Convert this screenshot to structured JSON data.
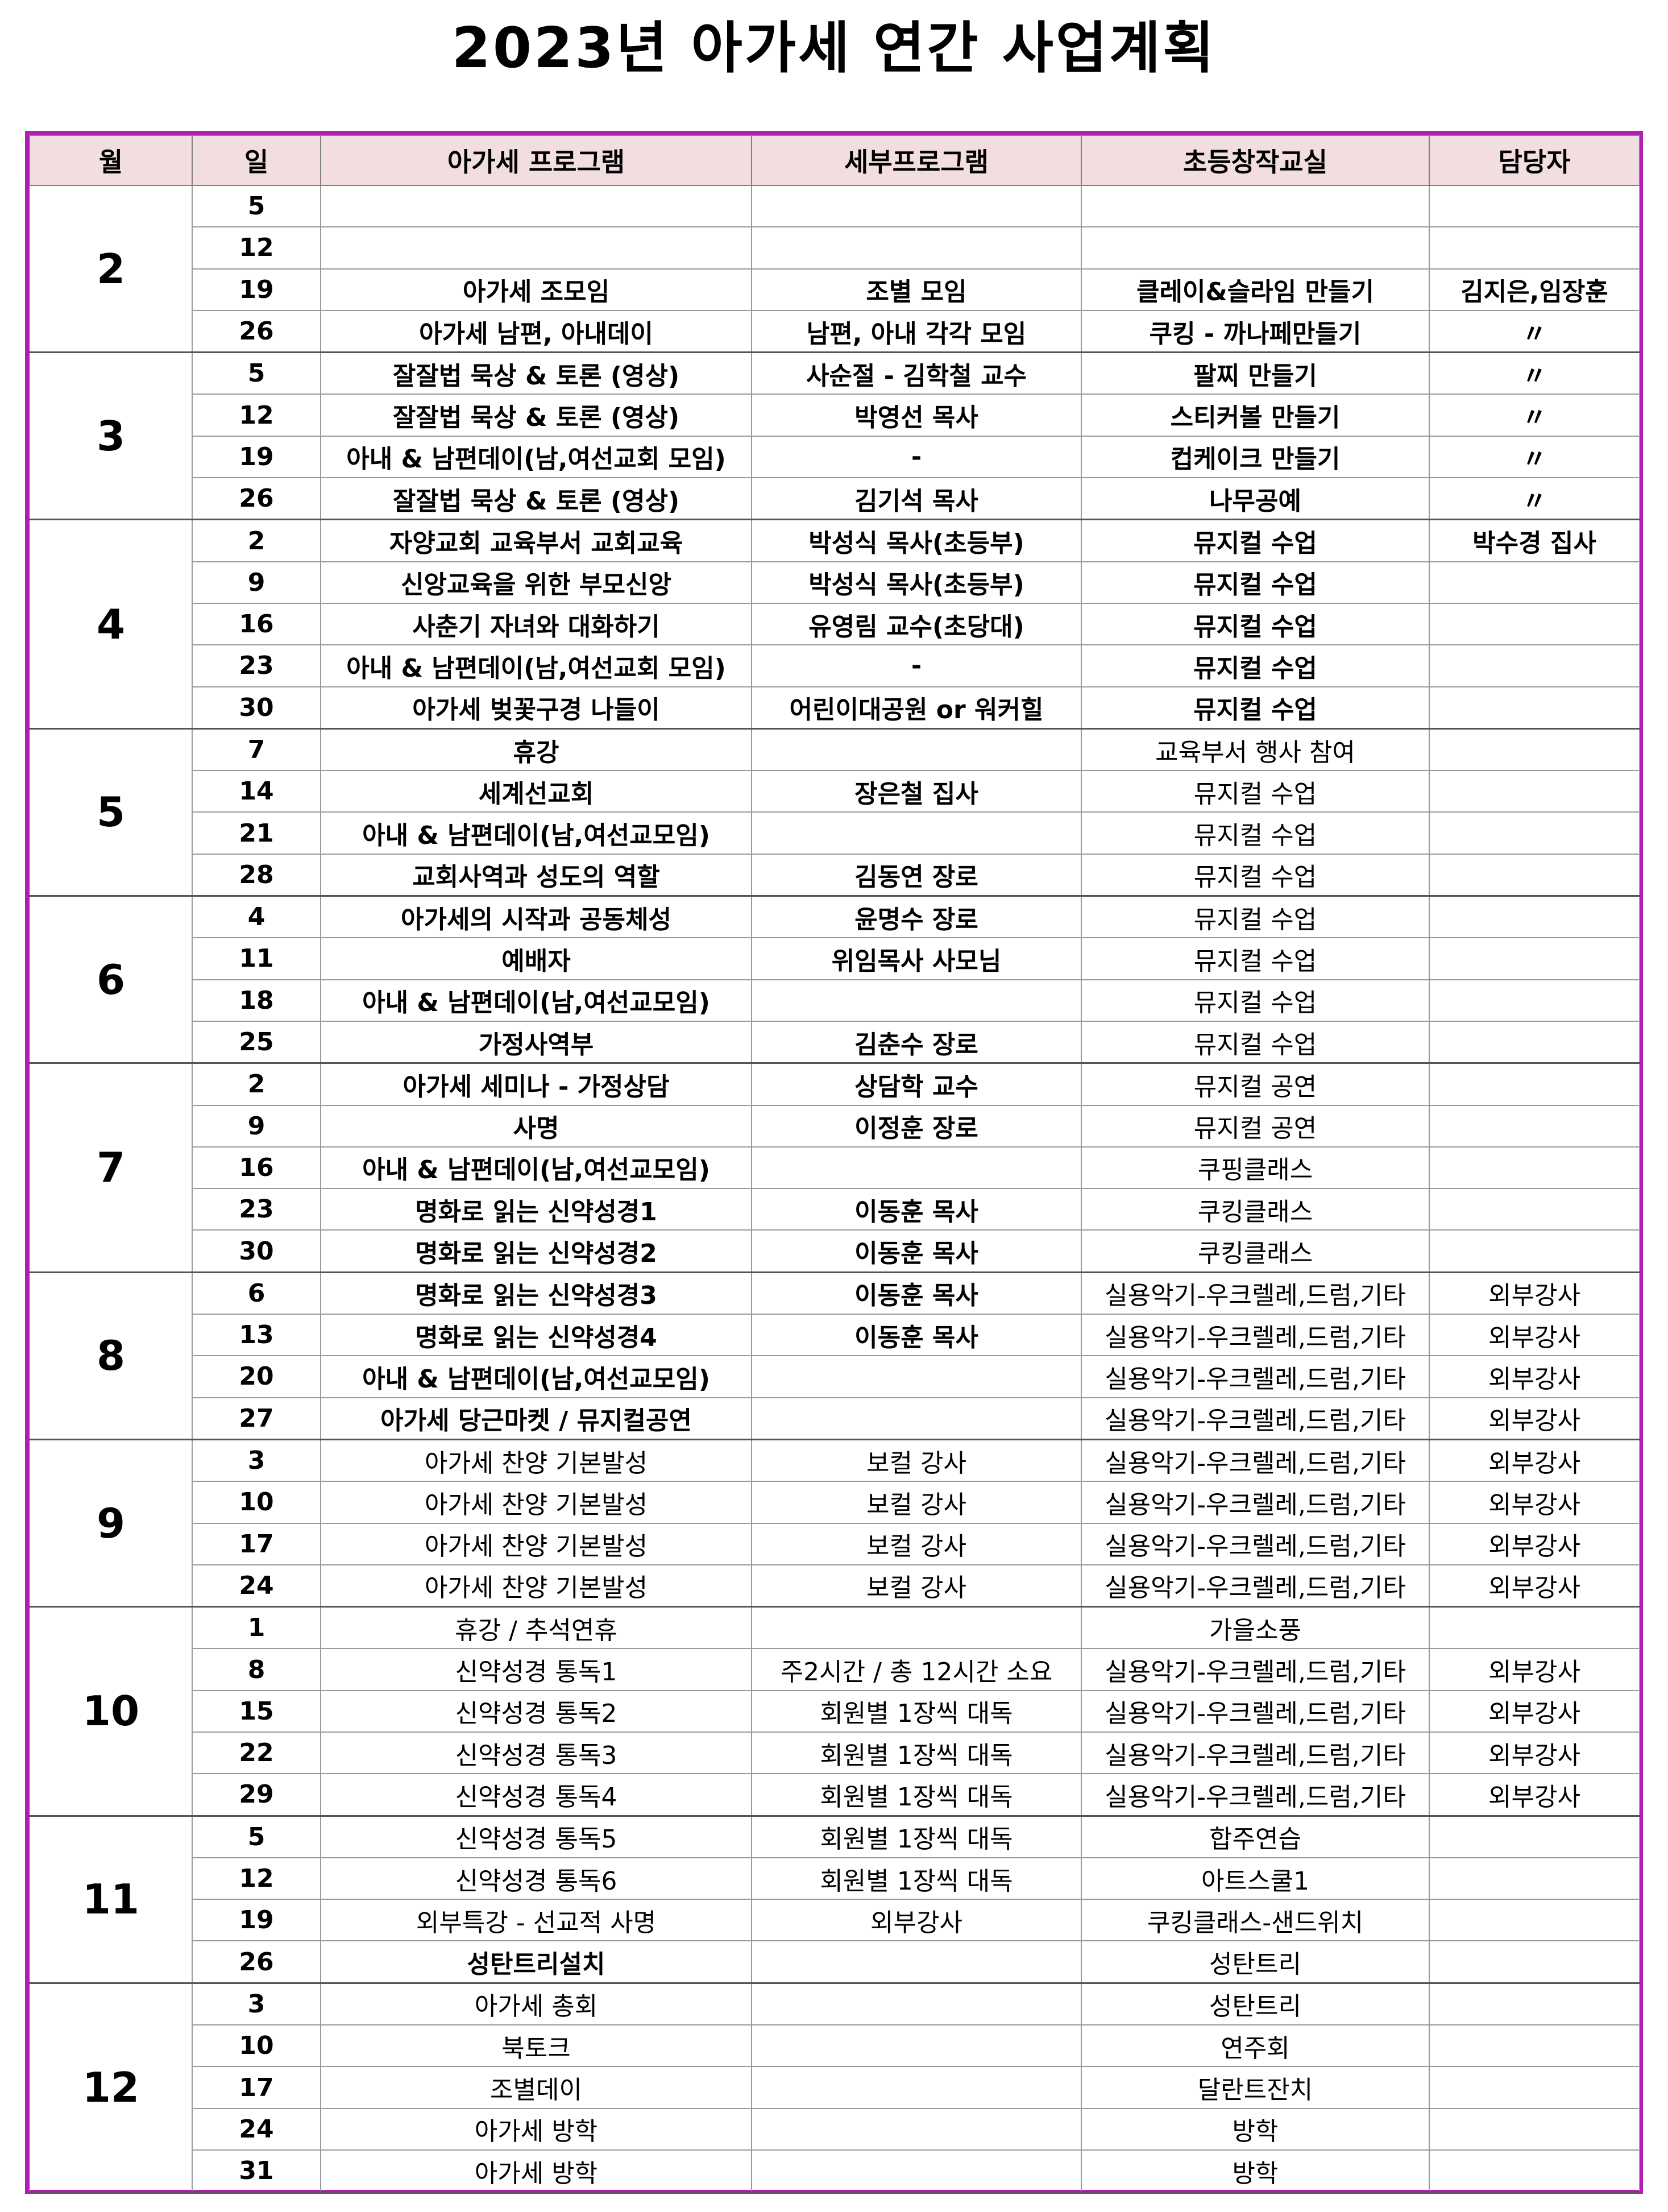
{
  "title": "2023년 아가세 연간 사업계획",
  "headers": {
    "month": "월",
    "day": "일",
    "program": "아가세 프로그램",
    "detail": "세부프로그램",
    "class": "초등창작교실",
    "manager": "담당자"
  },
  "months": [
    {
      "month": "2",
      "rows": [
        {
          "day": "5",
          "program": "",
          "detail": "",
          "class": "",
          "manager": ""
        },
        {
          "day": "12",
          "program": "",
          "detail": "",
          "class": "",
          "manager": ""
        },
        {
          "day": "19",
          "program": "아가세 조모임",
          "detail": "조별 모임",
          "class": "클레이&슬라임 만들기",
          "manager": "김지은,임장훈"
        },
        {
          "day": "26",
          "program": "아가세 남편, 아내데이",
          "detail": "남편, 아내 각각 모임",
          "class": "쿠킹 - 까나페만들기",
          "manager": "〃"
        }
      ]
    },
    {
      "month": "3",
      "rows": [
        {
          "day": "5",
          "program": "잘잘법 묵상 & 토론 (영상)",
          "detail": "사순절 - 김학철 교수",
          "class": "팔찌 만들기",
          "manager": "〃"
        },
        {
          "day": "12",
          "program": "잘잘법 묵상 & 토론 (영상)",
          "detail": "박영선 목사",
          "class": "스티커볼 만들기",
          "manager": "〃"
        },
        {
          "day": "19",
          "program": "아내 & 남편데이(남,여선교회 모임)",
          "detail": "-",
          "class": "컵케이크 만들기",
          "manager": "〃"
        },
        {
          "day": "26",
          "program": "잘잘법 묵상 & 토론 (영상)",
          "detail": "김기석 목사",
          "class": "나무공예",
          "manager": "〃"
        }
      ]
    },
    {
      "month": "4",
      "rows": [
        {
          "day": "2",
          "program": "자양교회 교육부서 교회교육",
          "detail": "박성식 목사(초등부)",
          "class": "뮤지컬 수업",
          "manager": "박수경 집사"
        },
        {
          "day": "9",
          "program": "신앙교육을 위한 부모신앙",
          "detail": "박성식 목사(초등부)",
          "class": "뮤지컬 수업",
          "manager": ""
        },
        {
          "day": "16",
          "program": "사춘기 자녀와 대화하기",
          "detail": "유영림 교수(초당대)",
          "class": "뮤지컬 수업",
          "manager": ""
        },
        {
          "day": "23",
          "program": "아내 & 남편데이(남,여선교회 모임)",
          "detail": "-",
          "class": "뮤지컬 수업",
          "manager": ""
        },
        {
          "day": "30",
          "program": "아가세 벚꽃구경 나들이",
          "detail": "어린이대공원 or 워커힐",
          "class": "뮤지컬 수업",
          "manager": ""
        }
      ]
    },
    {
      "month": "5",
      "rows": [
        {
          "day": "7",
          "program": "휴강",
          "detail": "",
          "class": "교육부서 행사 참여",
          "manager": ""
        },
        {
          "day": "14",
          "program": "세계선교회",
          "detail": "장은철 집사",
          "class": "뮤지컬 수업",
          "manager": ""
        },
        {
          "day": "21",
          "program": "아내 & 남편데이(남,여선교모임)",
          "detail": "",
          "class": "뮤지컬 수업",
          "manager": ""
        },
        {
          "day": "28",
          "program": "교회사역과 성도의 역할",
          "detail": "김동연 장로",
          "class": "뮤지컬 수업",
          "manager": ""
        }
      ]
    },
    {
      "month": "6",
      "rows": [
        {
          "day": "4",
          "program": "아가세의 시작과 공동체성",
          "detail": "윤명수 장로",
          "class": "뮤지컬 수업",
          "manager": ""
        },
        {
          "day": "11",
          "program": "예배자",
          "detail": "위임목사 사모님",
          "class": "뮤지컬 수업",
          "manager": ""
        },
        {
          "day": "18",
          "program": "아내 & 남편데이(남,여선교모임)",
          "detail": "",
          "class": "뮤지컬 수업",
          "manager": ""
        },
        {
          "day": "25",
          "program": "가정사역부",
          "detail": "김춘수 장로",
          "class": "뮤지컬 수업",
          "manager": ""
        }
      ]
    },
    {
      "month": "7",
      "rows": [
        {
          "day": "2",
          "program": "아가세 세미나 - 가정상담",
          "detail": "상담학 교수",
          "class": "뮤지컬 공연",
          "manager": ""
        },
        {
          "day": "9",
          "program": "사명",
          "detail": "이정훈 장로",
          "class": "뮤지컬 공연",
          "manager": ""
        },
        {
          "day": "16",
          "program": "아내 & 남편데이(남,여선교모임)",
          "detail": "",
          "class": "쿠핑클래스",
          "manager": ""
        },
        {
          "day": "23",
          "program": "명화로 읽는 신약성경1",
          "detail": "이동훈 목사",
          "class": "쿠킹클래스",
          "manager": ""
        },
        {
          "day": "30",
          "program": "명화로 읽는 신약성경2",
          "detail": "이동훈 목사",
          "class": "쿠킹클래스",
          "manager": ""
        }
      ]
    },
    {
      "month": "8",
      "rows": [
        {
          "day": "6",
          "program": "명화로 읽는 신약성경3",
          "detail": "이동훈 목사",
          "class": "실용악기-우크렐레,드럼,기타",
          "manager": "외부강사"
        },
        {
          "day": "13",
          "program": "명화로 읽는 신약성경4",
          "detail": "이동훈 목사",
          "class": "실용악기-우크렐레,드럼,기타",
          "manager": "외부강사"
        },
        {
          "day": "20",
          "program": "아내 & 남편데이(남,여선교모임)",
          "detail": "",
          "class": "실용악기-우크렐레,드럼,기타",
          "manager": "외부강사"
        },
        {
          "day": "27",
          "program": "아가세 당근마켓 / 뮤지컬공연",
          "detail": "",
          "class": "실용악기-우크렐레,드럼,기타",
          "manager": "외부강사"
        }
      ]
    },
    {
      "month": "9",
      "rows": [
        {
          "day": "3",
          "program": "아가세 찬양 기본발성",
          "detail": "보컬 강사",
          "class": "실용악기-우크렐레,드럼,기타",
          "manager": "외부강사"
        },
        {
          "day": "10",
          "program": "아가세 찬양 기본발성",
          "detail": "보컬 강사",
          "class": "실용악기-우크렐레,드럼,기타",
          "manager": "외부강사"
        },
        {
          "day": "17",
          "program": "아가세 찬양 기본발성",
          "detail": "보컬 강사",
          "class": "실용악기-우크렐레,드럼,기타",
          "manager": "외부강사"
        },
        {
          "day": "24",
          "program": "아가세 찬양 기본발성",
          "detail": "보컬 강사",
          "class": "실용악기-우크렐레,드럼,기타",
          "manager": "외부강사"
        }
      ]
    },
    {
      "month": "10",
      "rows": [
        {
          "day": "1",
          "program": "휴강 / 추석연휴",
          "detail": "",
          "class": "가을소풍",
          "manager": ""
        },
        {
          "day": "8",
          "program": "신약성경 통독1",
          "detail": "주2시간 / 총 12시간 소요",
          "class": "실용악기-우크렐레,드럼,기타",
          "manager": "외부강사"
        },
        {
          "day": "15",
          "program": "신약성경 통독2",
          "detail": "회원별 1장씩 대독",
          "class": "실용악기-우크렐레,드럼,기타",
          "manager": "외부강사"
        },
        {
          "day": "22",
          "program": "신약성경 통독3",
          "detail": "회원별 1장씩 대독",
          "class": "실용악기-우크렐레,드럼,기타",
          "manager": "외부강사"
        },
        {
          "day": "29",
          "program": "신약성경 통독4",
          "detail": "회원별 1장씩 대독",
          "class": "실용악기-우크렐레,드럼,기타",
          "manager": "외부강사"
        }
      ]
    },
    {
      "month": "11",
      "rows": [
        {
          "day": "5",
          "program": "신약성경 통독5",
          "detail": "회원별 1장씩 대독",
          "class": "합주연습",
          "manager": ""
        },
        {
          "day": "12",
          "program": "신약성경 통독6",
          "detail": "회원별 1장씩 대독",
          "class": "아트스쿨1",
          "manager": ""
        },
        {
          "day": "19",
          "program": "외부특강 - 선교적 사명",
          "detail": "외부강사",
          "class": "쿠킹클래스-샌드위치",
          "manager": ""
        },
        {
          "day": "26",
          "program": "성탄트리설치",
          "detail": "",
          "class": "성탄트리",
          "manager": ""
        }
      ]
    },
    {
      "month": "12",
      "rows": [
        {
          "day": "3",
          "program": "아가세 총회",
          "detail": "",
          "class": "성탄트리",
          "manager": ""
        },
        {
          "day": "10",
          "program": "북토크",
          "detail": "",
          "class": "연주회",
          "manager": ""
        },
        {
          "day": "17",
          "program": "조별데이",
          "detail": "",
          "class": "달란트잔치",
          "manager": ""
        },
        {
          "day": "24",
          "program": "아가세 방학",
          "detail": "",
          "class": "방학",
          "manager": ""
        },
        {
          "day": "31",
          "program": "아가세 방학",
          "detail": "",
          "class": "방학",
          "manager": ""
        }
      ]
    }
  ]
}
